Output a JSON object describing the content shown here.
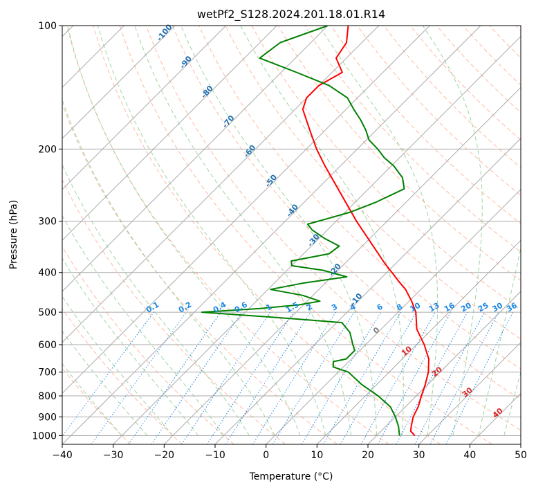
{
  "chart_data": {
    "type": "line",
    "title": "wetPf2_S128.2024.201.18.01.R14",
    "xlabel": "Temperature (°C)",
    "ylabel": "Pressure (hPa)",
    "xlim": [
      -40,
      50
    ],
    "ylim": [
      1050,
      100
    ],
    "y_scale": "log",
    "x_ticks": [
      -40,
      -30,
      -20,
      -10,
      0,
      10,
      20,
      30,
      40,
      50
    ],
    "y_ticks": [
      100,
      200,
      300,
      400,
      500,
      600,
      700,
      800,
      900,
      1000
    ],
    "grid": true,
    "skew": 45,
    "colors": {
      "temperature": "#ff0000",
      "dewpoint": "#008000",
      "isotherm": "#aaaaaa",
      "dry_adiabat": "#ffb9a0",
      "moist_adiabat": "#9fd49f",
      "mixing_ratio": "#1e88e5",
      "dry_adiabat_label": "#1f6fb0",
      "moist_adiabat_label": "#d62728",
      "zero_label": "#808080"
    },
    "series": [
      {
        "key": "temperature",
        "p": [
          1000,
          975,
          950,
          900,
          850,
          800,
          750,
          700,
          650,
          600,
          550,
          500,
          470,
          440,
          420,
          400,
          380,
          350,
          300,
          250,
          220,
          200,
          180,
          160,
          150,
          140,
          130,
          120,
          110,
          100
        ],
        "t": [
          27.5,
          25.8,
          25.0,
          23.5,
          22.5,
          21.0,
          19.5,
          17.7,
          15.2,
          11.5,
          7.0,
          3.5,
          0.5,
          -3.0,
          -6.0,
          -9.0,
          -12.2,
          -17.0,
          -26.0,
          -36.0,
          -43.0,
          -48.0,
          -53.0,
          -58.5,
          -60.0,
          -60.0,
          -58.0,
          -62.0,
          -63.0,
          -66.0
        ]
      },
      {
        "key": "dewpoint",
        "p": [
          1000,
          950,
          900,
          850,
          800,
          750,
          700,
          680,
          660,
          650,
          620,
          600,
          560,
          530,
          520,
          510,
          500,
          490,
          480,
          470,
          455,
          440,
          425,
          410,
          395,
          385,
          375,
          360,
          345,
          330,
          315,
          305,
          295,
          285,
          270,
          250,
          235,
          220,
          210,
          200,
          190,
          180,
          170,
          160,
          150,
          140,
          130,
          120,
          110,
          100
        ],
        "td": [
          24.5,
          22.5,
          20.0,
          17.0,
          12.5,
          7.0,
          2.0,
          -2.0,
          -3.0,
          -1.0,
          -1.0,
          -2.5,
          -5.5,
          -9.0,
          -18.0,
          -28.0,
          -38.5,
          -28.0,
          -21.0,
          -17.5,
          -22.0,
          -29.5,
          -24.5,
          -17.0,
          -23.0,
          -30.0,
          -31.0,
          -25.0,
          -24.5,
          -29.0,
          -33.0,
          -35.0,
          -32.0,
          -29.0,
          -26.0,
          -23.0,
          -25.5,
          -29.5,
          -33.0,
          -36.0,
          -39.5,
          -42.0,
          -45.0,
          -48.5,
          -52.0,
          -58.0,
          -67.0,
          -77.0,
          -76.0,
          -70.0
        ]
      }
    ],
    "labels": {
      "dry_adiabats": [
        "-100",
        "-90",
        "-80",
        "-70",
        "-60",
        "-50",
        "-40",
        "-30",
        "-20",
        "-10"
      ],
      "moist_adiabats": [
        "0",
        "10",
        "20",
        "30",
        "40"
      ],
      "mixing_ratios": [
        "0.1",
        "0.2",
        "0.4",
        "0.6",
        "1",
        "1.5",
        "2",
        "3",
        "4",
        "6",
        "8",
        "10",
        "13",
        "16",
        "20",
        "25",
        "30",
        "36"
      ]
    }
  }
}
